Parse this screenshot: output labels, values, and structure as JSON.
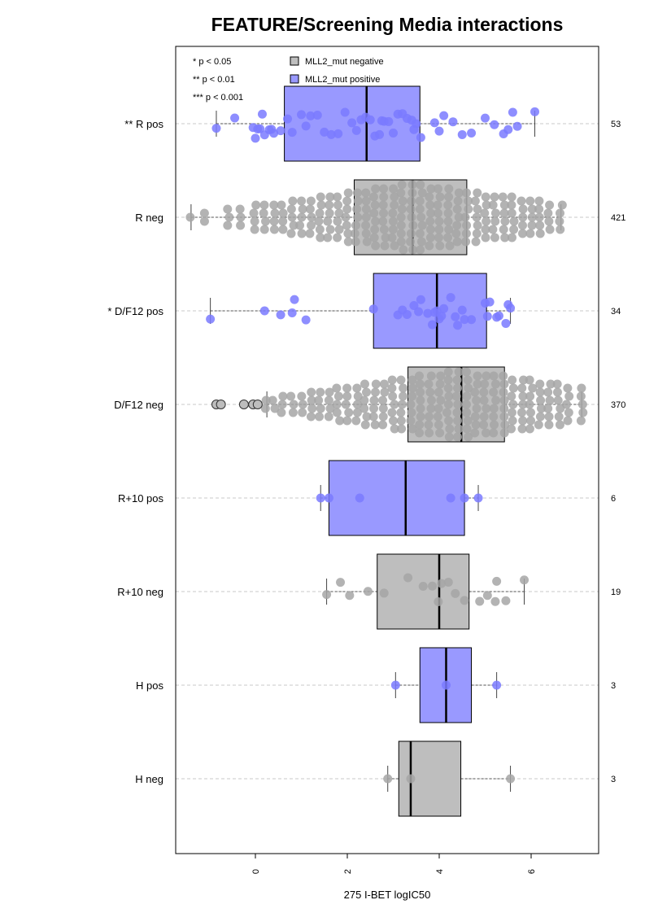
{
  "chart_data": {
    "type": "box",
    "title": "FEATURE/Screening Media interactions",
    "xlabel": "275 I-BET logIC50",
    "ylabel": "",
    "xlim": [
      -1.75,
      7.5
    ],
    "x_ticks": [
      0,
      2,
      4,
      6
    ],
    "grid": "dashed horizontal lines at each group",
    "legend_position": "top-left inside plot",
    "significance_legend": [
      "* p < 0.05",
      "** p < 0.01",
      "*** p < 0.001"
    ],
    "series_legend": [
      {
        "name": "MLL2_mut negative",
        "color": "#bebebe"
      },
      {
        "name": "MLL2_mut positive",
        "color": "#9999ff"
      }
    ],
    "colors": {
      "negative_fill": "#bebebe",
      "positive_fill": "#9999ff",
      "negative_point": "#a6a6a6",
      "positive_point": "#7a7aff",
      "grid": "#c8c8c8"
    },
    "groups": [
      {
        "label": "** R pos",
        "n": "53",
        "mutant": "positive",
        "box": {
          "whisker_low": -0.85,
          "q1": 0.63,
          "median": 2.42,
          "q3": 3.58,
          "whisker_high": 6.08
        },
        "points": [
          -0.85,
          -0.45,
          -0.05,
          0.0,
          0.05,
          0.1,
          0.15,
          0.2,
          0.3,
          0.4,
          0.55,
          0.7,
          0.8,
          1.0,
          1.1,
          1.2,
          1.35,
          1.5,
          1.65,
          1.8,
          1.95,
          2.1,
          2.2,
          2.3,
          2.4,
          2.5,
          2.6,
          2.7,
          2.8,
          2.9,
          3.0,
          3.1,
          3.2,
          3.3,
          3.4,
          3.5,
          3.6,
          3.9,
          4.0,
          4.1,
          4.3,
          4.5,
          4.7,
          5.0,
          5.2,
          5.4,
          5.5,
          5.6,
          5.7,
          6.08,
          0.35,
          2.75,
          3.45
        ]
      },
      {
        "label": "R neg",
        "n": "421",
        "mutant": "negative",
        "box": {
          "whisker_low": -1.4,
          "q1": 2.15,
          "median": 3.42,
          "q3": 4.6,
          "whisker_high": 6.65
        },
        "points": [
          -1.4,
          -1.1,
          -0.6,
          -0.3,
          0.0,
          0.2,
          0.4,
          0.6,
          0.8,
          1.0,
          1.2,
          1.4,
          1.6,
          1.8,
          2.0,
          2.2,
          2.4,
          2.6,
          2.8,
          3.0,
          3.2,
          3.4,
          3.6,
          3.8,
          4.0,
          4.2,
          4.4,
          4.6,
          4.8,
          5.0,
          5.2,
          5.4,
          5.6,
          5.8,
          6.0,
          6.2,
          6.4,
          6.65
        ]
      },
      {
        "label": "* D/F12 pos",
        "n": "34",
        "mutant": "positive",
        "box": {
          "whisker_low": -0.98,
          "q1": 2.57,
          "median": 3.95,
          "q3": 5.03,
          "whisker_high": 5.55
        },
        "points": [
          -0.98,
          0.2,
          0.55,
          0.8,
          0.85,
          1.1,
          2.57,
          3.1,
          3.3,
          3.45,
          3.6,
          3.75,
          3.9,
          4.0,
          4.1,
          4.25,
          4.4,
          4.55,
          4.7,
          5.0,
          5.1,
          5.3,
          5.45,
          5.55,
          3.2,
          3.85,
          4.05,
          4.5,
          5.05,
          3.55,
          3.95,
          4.35,
          5.25,
          5.5
        ]
      },
      {
        "label": "D/F12 neg",
        "n": "370",
        "mutant": "negative",
        "box": {
          "whisker_low": 0.25,
          "q1": 3.32,
          "median": 4.48,
          "q3": 5.42,
          "whisker_high": 7.1
        },
        "outliers": [
          -0.85,
          -0.75,
          -0.25,
          -0.05,
          0.05
        ],
        "points": [
          0.25,
          0.4,
          0.6,
          0.8,
          1.0,
          1.2,
          1.4,
          1.6,
          1.8,
          2.0,
          2.2,
          2.4,
          2.6,
          2.8,
          3.0,
          3.2,
          3.4,
          3.6,
          3.8,
          4.0,
          4.2,
          4.4,
          4.6,
          4.8,
          5.0,
          5.2,
          5.4,
          5.6,
          5.8,
          6.0,
          6.2,
          6.4,
          6.6,
          6.8,
          7.1
        ]
      },
      {
        "label": "R+10 pos",
        "n": "6",
        "mutant": "positive",
        "box": {
          "whisker_low": 1.42,
          "q1": 1.6,
          "median": 3.27,
          "q3": 4.55,
          "whisker_high": 4.85
        },
        "points": [
          1.42,
          1.6,
          2.27,
          4.25,
          4.55,
          4.85
        ]
      },
      {
        "label": "R+10 neg",
        "n": "19",
        "mutant": "negative",
        "box": {
          "whisker_low": 1.55,
          "q1": 2.65,
          "median": 4.0,
          "q3": 4.65,
          "whisker_high": 5.85
        },
        "points": [
          1.55,
          1.85,
          2.05,
          2.45,
          2.8,
          3.32,
          3.65,
          3.85,
          3.98,
          4.05,
          4.2,
          4.35,
          4.55,
          4.88,
          5.05,
          5.22,
          5.25,
          5.45,
          5.85
        ]
      },
      {
        "label": "H pos",
        "n": "3",
        "mutant": "positive",
        "box": {
          "whisker_low": 3.05,
          "q1": 3.58,
          "median": 4.15,
          "q3": 4.7,
          "whisker_high": 5.25
        },
        "points": [
          3.05,
          4.15,
          5.25
        ]
      },
      {
        "label": "H neg",
        "n": "3",
        "mutant": "negative",
        "box": {
          "whisker_low": 2.88,
          "q1": 3.12,
          "median": 3.38,
          "q3": 4.47,
          "whisker_high": 5.55
        },
        "points": [
          2.88,
          3.38,
          5.55
        ]
      }
    ]
  }
}
